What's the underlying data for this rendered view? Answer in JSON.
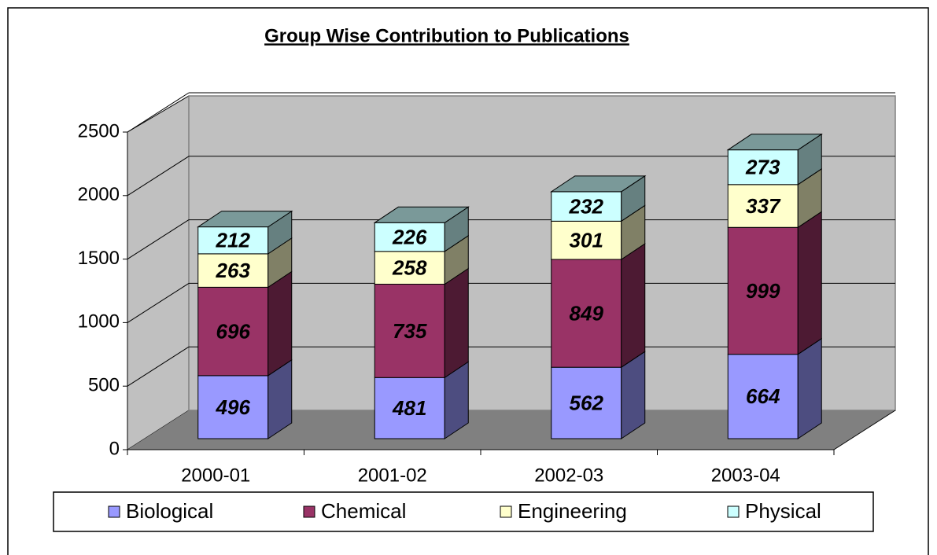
{
  "chart_data": {
    "type": "bar3d_stacked",
    "title": "Group Wise Contribution to Publications",
    "categories": [
      "2000-01",
      "2001-02",
      "2002-03",
      "2003-04"
    ],
    "series": [
      {
        "name": "Biological",
        "color": "#9999ff",
        "values": [
          496,
          481,
          562,
          664
        ]
      },
      {
        "name": "Chemical",
        "color": "#993366",
        "values": [
          696,
          735,
          849,
          999
        ]
      },
      {
        "name": "Engineering",
        "color": "#ffffcc",
        "values": [
          263,
          258,
          301,
          337
        ]
      },
      {
        "name": "Physical",
        "color": "#ccffff",
        "values": [
          212,
          226,
          232,
          273
        ]
      }
    ],
    "ylim": [
      0,
      2500
    ],
    "yticks": [
      0,
      500,
      1000,
      1500,
      2000,
      2500
    ],
    "grid": true,
    "legend": "bottom"
  }
}
